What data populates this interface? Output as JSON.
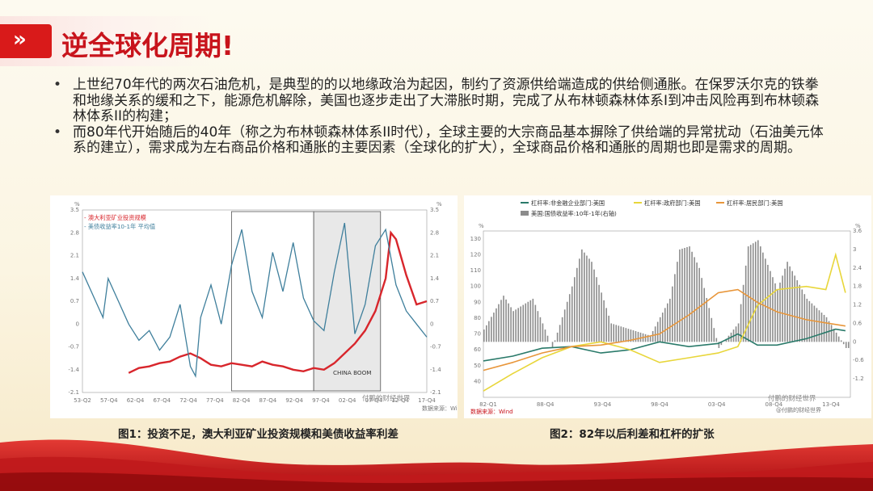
{
  "header": {
    "title": "逆全球化周期!",
    "chevron": "»"
  },
  "bullets": [
    "上世纪70年代的两次石油危机，是典型的的以地缘政治为起因，制约了资源供给端造成的供给侧通胀。在保罗沃尔克的铁拳和地缘关系的缓和之下，能源危机解除，美国也逐步走出了大滞胀时期，完成了从布林顿森林体系I到冲击风险再到布林顿森林体系II的构建；",
    "而80年代开始随后的40年（称之为布林顿森林体系II时代），全球主要的大宗商品基本摒除了供给端的异常扰动（石油美元体系的建立），需求成为左右商品价格和通胀的主要因素（全球化的扩大），全球商品价格和通胀的周期也即是需求的周期。"
  ],
  "colors": {
    "title": "#c8141c",
    "accent_red": "#d91a1a",
    "series_red": "#d8262c",
    "series_blue": "#3f7f9c",
    "lev_corp": "#2a7a6a",
    "lev_gov": "#e8d63a",
    "lev_house": "#e8963a",
    "spread_bar": "#8c8c8c"
  },
  "charts": [
    {
      "caption": "图1：投资不足，澳大利亚矿业投资规模和美债收益率利差",
      "watermark": "付鹏的财经世界",
      "unit_left": "%",
      "unit_right": "%",
      "source": "数据来源：Wind",
      "annotation": "CHINA BOOM",
      "legend": [
        "- 澳大利亚矿业投资规模",
        "- 美债收益率10-1年 平均值"
      ]
    },
    {
      "caption": "图2：82年以后利差和杠杆的扩张",
      "watermark": "付鹏的财经世界",
      "unit_left": "%",
      "unit_right": "%",
      "source": "数据来源：Wind",
      "source_right": "@付鹏的财经世界",
      "legend": [
        "杠杆率:非金融企业部门:美国",
        "杠杆率:政府部门:美国",
        "杠杆率:居民部门:美国",
        "美国:国债收益率:10年-1年(右轴)"
      ]
    }
  ],
  "chart_data": [
    {
      "type": "line",
      "title": "",
      "xlabel": "",
      "ylabel": "",
      "x_ticks": [
        "53-Q2",
        "57-Q4",
        "62-Q4",
        "67-Q4",
        "72-Q4",
        "77-Q4",
        "82-Q4",
        "87-Q4",
        "92-Q4",
        "97-Q4",
        "02-Q4",
        "07-Q4",
        "12-Q4",
        "17-Q4"
      ],
      "y_ticks_left": [
        -2.1,
        -1.4,
        -0.7,
        0,
        0.7,
        1.4,
        2.1,
        2.8,
        3.5
      ],
      "y_ticks_right": [
        -2.1,
        -1.4,
        -0.7,
        0,
        0.7,
        1.4,
        2.1,
        2.8,
        3.5
      ],
      "ylim": [
        -2.1,
        3.5
      ],
      "grid": false,
      "legend_position": "top-left",
      "series": [
        {
          "name": "澳大利亚矿业投资规模",
          "color": "#d8262c",
          "x": [
            62,
            64,
            66,
            68,
            70,
            72,
            74,
            76,
            78,
            80,
            82,
            84,
            86,
            88,
            90,
            92,
            94,
            96,
            98,
            100,
            102,
            104,
            106,
            108,
            110,
            112,
            113,
            114,
            116,
            118,
            120
          ],
          "values": [
            -1.5,
            -1.35,
            -1.3,
            -1.2,
            -1.15,
            -1.0,
            -0.9,
            -1.05,
            -1.25,
            -1.3,
            -1.2,
            -1.25,
            -1.3,
            -1.15,
            -1.25,
            -1.3,
            -1.4,
            -1.45,
            -1.35,
            -1.4,
            -1.2,
            -0.9,
            -0.6,
            -0.2,
            0.4,
            1.4,
            2.8,
            2.6,
            1.5,
            0.6,
            0.7
          ]
        },
        {
          "name": "美债收益率10-1年 平均值",
          "color": "#3f7f9c",
          "x": [
            53,
            55,
            57,
            58,
            60,
            62,
            64,
            66,
            68,
            70,
            72,
            74,
            75,
            76,
            78,
            80,
            82,
            84,
            86,
            88,
            90,
            92,
            94,
            96,
            98,
            100,
            102,
            104,
            106,
            108,
            110,
            112,
            114,
            116,
            118,
            120
          ],
          "values": [
            1.6,
            0.9,
            0.2,
            1.4,
            0.7,
            0.0,
            -0.5,
            -0.2,
            -0.8,
            -0.4,
            0.6,
            -1.3,
            -1.6,
            0.2,
            1.2,
            0.0,
            1.8,
            2.9,
            1.0,
            0.2,
            2.2,
            1.0,
            2.5,
            0.8,
            0.1,
            -0.2,
            1.6,
            3.1,
            -0.3,
            0.6,
            2.4,
            2.9,
            1.2,
            0.4,
            0.0,
            -0.4
          ]
        }
      ],
      "highlight_ranges": [
        [
          82,
          98
        ],
        [
          98,
          111
        ]
      ]
    },
    {
      "type": "line",
      "title": "",
      "x_ticks": [
        "82-Q1",
        "88-Q4",
        "93-Q4",
        "98-Q4",
        "03-Q4",
        "08-Q4",
        "13-Q4"
      ],
      "y_ticks_left": [
        40,
        50,
        60,
        70,
        80,
        90,
        100,
        110,
        120,
        130
      ],
      "y_ticks_right": [
        -1.2,
        -0.6,
        0,
        0.6,
        1.2,
        1.8,
        2.4,
        3,
        3.6
      ],
      "ylim_left": [
        30,
        135
      ],
      "ylim_right": [
        -1.8,
        3.6
      ],
      "legend_position": "top",
      "series": [
        {
          "name": "杠杆率:非金融企业部门:美国",
          "color": "#2a7a6a",
          "x": [
            1982,
            1985,
            1988,
            1991,
            1994,
            1997,
            2000,
            2003,
            2006,
            2008,
            2010,
            2012,
            2015,
            2018,
            2019
          ],
          "values": [
            53,
            56,
            61,
            62,
            58,
            60,
            65,
            62,
            64,
            70,
            63,
            63,
            67,
            73,
            72
          ]
        },
        {
          "name": "杠杆率:政府部门:美国",
          "color": "#e8d63a",
          "x": [
            1982,
            1985,
            1988,
            1991,
            1994,
            1997,
            2000,
            2003,
            2006,
            2008,
            2010,
            2012,
            2015,
            2017,
            2018,
            2019
          ],
          "values": [
            34,
            45,
            55,
            62,
            65,
            60,
            52,
            55,
            58,
            62,
            88,
            98,
            100,
            98,
            120,
            96
          ]
        },
        {
          "name": "杠杆率:居民部门:美国",
          "color": "#e8963a",
          "x": [
            1982,
            1985,
            1988,
            1991,
            1994,
            1997,
            2000,
            2003,
            2006,
            2008,
            2010,
            2012,
            2015,
            2019
          ],
          "values": [
            47,
            52,
            58,
            62,
            63,
            66,
            70,
            82,
            96,
            98,
            90,
            84,
            79,
            75
          ]
        },
        {
          "name": "美国:国债收益率:10年-1年(右轴)",
          "color": "#8c8c8c",
          "kind": "bar",
          "x": [
            1982,
            1984,
            1985,
            1987,
            1989,
            1991,
            1992,
            1993,
            1995,
            1997,
            1999,
            2001,
            2002,
            2003,
            2004,
            2006,
            2008,
            2009,
            2010,
            2012,
            2013,
            2015,
            2017,
            2018,
            2019
          ],
          "values": [
            0.4,
            1.5,
            1.0,
            1.4,
            -0.2,
            1.8,
            3.0,
            2.6,
            0.6,
            0.4,
            0.2,
            1.4,
            3.0,
            3.1,
            2.4,
            -0.2,
            0.6,
            3.1,
            3.3,
            1.7,
            2.6,
            1.4,
            0.8,
            0.3,
            -0.2
          ]
        }
      ]
    }
  ]
}
